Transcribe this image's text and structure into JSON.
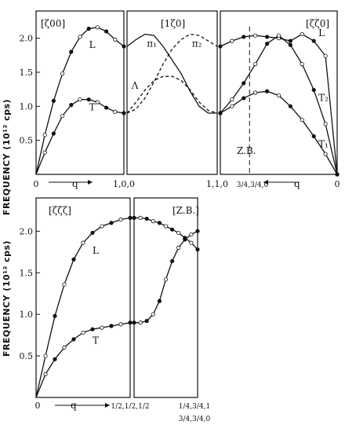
{
  "chart_data": [
    {
      "type": "line",
      "ylabel": "FREQUENCY (10¹² cps)",
      "ylim": [
        0,
        2.4
      ],
      "y_ticks": [
        "0.5",
        "1.0",
        "1.5",
        "2.0"
      ],
      "y_tick_values": [
        0.5,
        1.0,
        1.5,
        2.0
      ],
      "panels": [
        {
          "title": "[ζ00]",
          "x_tick_labels": [
            "0",
            "1,0,0"
          ],
          "arrow_label": "q",
          "series": [
            {
              "name": "L",
              "x": [
                0,
                0.1,
                0.2,
                0.3,
                0.4,
                0.5,
                0.6,
                0.7,
                0.8,
                0.9,
                1.0
              ],
              "values": [
                0,
                0.58,
                1.08,
                1.48,
                1.8,
                2.02,
                2.14,
                2.16,
                2.1,
                1.98,
                1.88
              ]
            },
            {
              "name": "T",
              "x": [
                0,
                0.1,
                0.2,
                0.3,
                0.4,
                0.5,
                0.6,
                0.7,
                0.8,
                0.9,
                1.0
              ],
              "values": [
                0,
                0.32,
                0.6,
                0.86,
                1.02,
                1.1,
                1.1,
                1.06,
                0.98,
                0.92,
                0.9
              ]
            }
          ]
        },
        {
          "title": "[1ζ0]",
          "x_tick_labels": [
            "1,1,0"
          ],
          "series": [
            {
              "name": "π₁",
              "x": [
                0,
                0.1,
                0.2,
                0.3,
                0.4,
                0.5,
                0.6,
                0.7,
                0.8,
                0.9,
                1.0
              ],
              "values": [
                1.88,
                1.98,
                2.06,
                2.04,
                1.88,
                1.68,
                1.48,
                1.22,
                1.0,
                0.9,
                0.9
              ]
            },
            {
              "name": "π₂",
              "x": [
                0,
                0.1,
                0.2,
                0.3,
                0.4,
                0.5,
                0.6,
                0.7,
                0.8,
                0.9,
                1.0
              ],
              "values": [
                0.9,
                0.96,
                1.12,
                1.36,
                1.62,
                1.84,
                1.98,
                2.06,
                2.04,
                1.96,
                1.88
              ]
            },
            {
              "name": "Λ",
              "x": [
                0,
                0.1,
                0.2,
                0.3,
                0.4,
                0.5,
                0.6,
                0.7,
                0.8,
                0.9,
                1.0
              ],
              "values": [
                0.9,
                1.06,
                1.24,
                1.38,
                1.44,
                1.44,
                1.38,
                1.24,
                1.06,
                0.94,
                0.9
              ]
            }
          ]
        },
        {
          "title": "[ζζ0]",
          "x_tick_labels": [
            "3/4,3/4,0",
            "0"
          ],
          "arrow_label": "q",
          "annotation": "Z.B.",
          "series": [
            {
              "name": "L",
              "x": [
                0,
                0.1,
                0.2,
                0.3,
                0.4,
                0.5,
                0.6,
                0.7,
                0.8,
                0.9,
                1.0
              ],
              "values": [
                1.88,
                1.96,
                2.02,
                2.04,
                2.02,
                2.0,
                1.96,
                2.06,
                1.96,
                1.74,
                0
              ]
            },
            {
              "name": "T₂",
              "x": [
                0,
                0.1,
                0.2,
                0.3,
                0.4,
                0.5,
                0.6,
                0.7,
                0.8,
                0.9,
                1.0
              ],
              "values": [
                0.9,
                1.1,
                1.34,
                1.62,
                1.92,
                2.04,
                1.9,
                1.62,
                1.24,
                0.74,
                0
              ]
            },
            {
              "name": "T₁",
              "x": [
                0,
                0.1,
                0.2,
                0.3,
                0.4,
                0.5,
                0.6,
                0.7,
                0.8,
                0.9,
                1.0
              ],
              "values": [
                0.9,
                1.0,
                1.12,
                1.2,
                1.22,
                1.16,
                1.0,
                0.8,
                0.56,
                0.3,
                0
              ]
            }
          ]
        }
      ]
    },
    {
      "type": "line",
      "ylabel": "FREQUENCY (10¹² cps)",
      "ylim": [
        0,
        2.4
      ],
      "y_ticks": [
        "0.5",
        "1.0",
        "1.5",
        "2.0"
      ],
      "y_tick_values": [
        0.5,
        1.0,
        1.5,
        2.0
      ],
      "panels": [
        {
          "title": "[ζζζ]",
          "x_tick_labels": [
            "0",
            "1/2,1/2,1/2"
          ],
          "arrow_label": "q",
          "series": [
            {
              "name": "L",
              "x": [
                0,
                0.1,
                0.2,
                0.3,
                0.4,
                0.5,
                0.6,
                0.7,
                0.8,
                0.9,
                1.0
              ],
              "values": [
                0,
                0.5,
                0.98,
                1.36,
                1.66,
                1.86,
                1.98,
                2.06,
                2.1,
                2.14,
                2.16
              ]
            },
            {
              "name": "T",
              "x": [
                0,
                0.1,
                0.2,
                0.3,
                0.4,
                0.5,
                0.6,
                0.7,
                0.8,
                0.9,
                1.0
              ],
              "values": [
                0,
                0.28,
                0.46,
                0.6,
                0.7,
                0.78,
                0.82,
                0.84,
                0.86,
                0.88,
                0.9
              ]
            }
          ]
        },
        {
          "title": "[Z.B.]",
          "x_tick_labels": [
            "1/4,3/4,1",
            "3/4,3/4,0"
          ],
          "series": [
            {
              "x": [
                0,
                0.1,
                0.2,
                0.3,
                0.4,
                0.5,
                0.6,
                0.7,
                0.8,
                0.9,
                1.0
              ],
              "values": [
                2.16,
                2.16,
                2.15,
                2.12,
                2.1,
                2.06,
                2.02,
                1.98,
                1.92,
                1.86,
                1.78
              ]
            },
            {
              "x": [
                0,
                0.1,
                0.2,
                0.3,
                0.4,
                0.5,
                0.6,
                0.7,
                0.8,
                0.9,
                1.0
              ],
              "values": [
                0.9,
                0.9,
                0.92,
                1.0,
                1.16,
                1.42,
                1.64,
                1.8,
                1.9,
                1.96,
                2.0
              ]
            }
          ]
        }
      ]
    }
  ]
}
